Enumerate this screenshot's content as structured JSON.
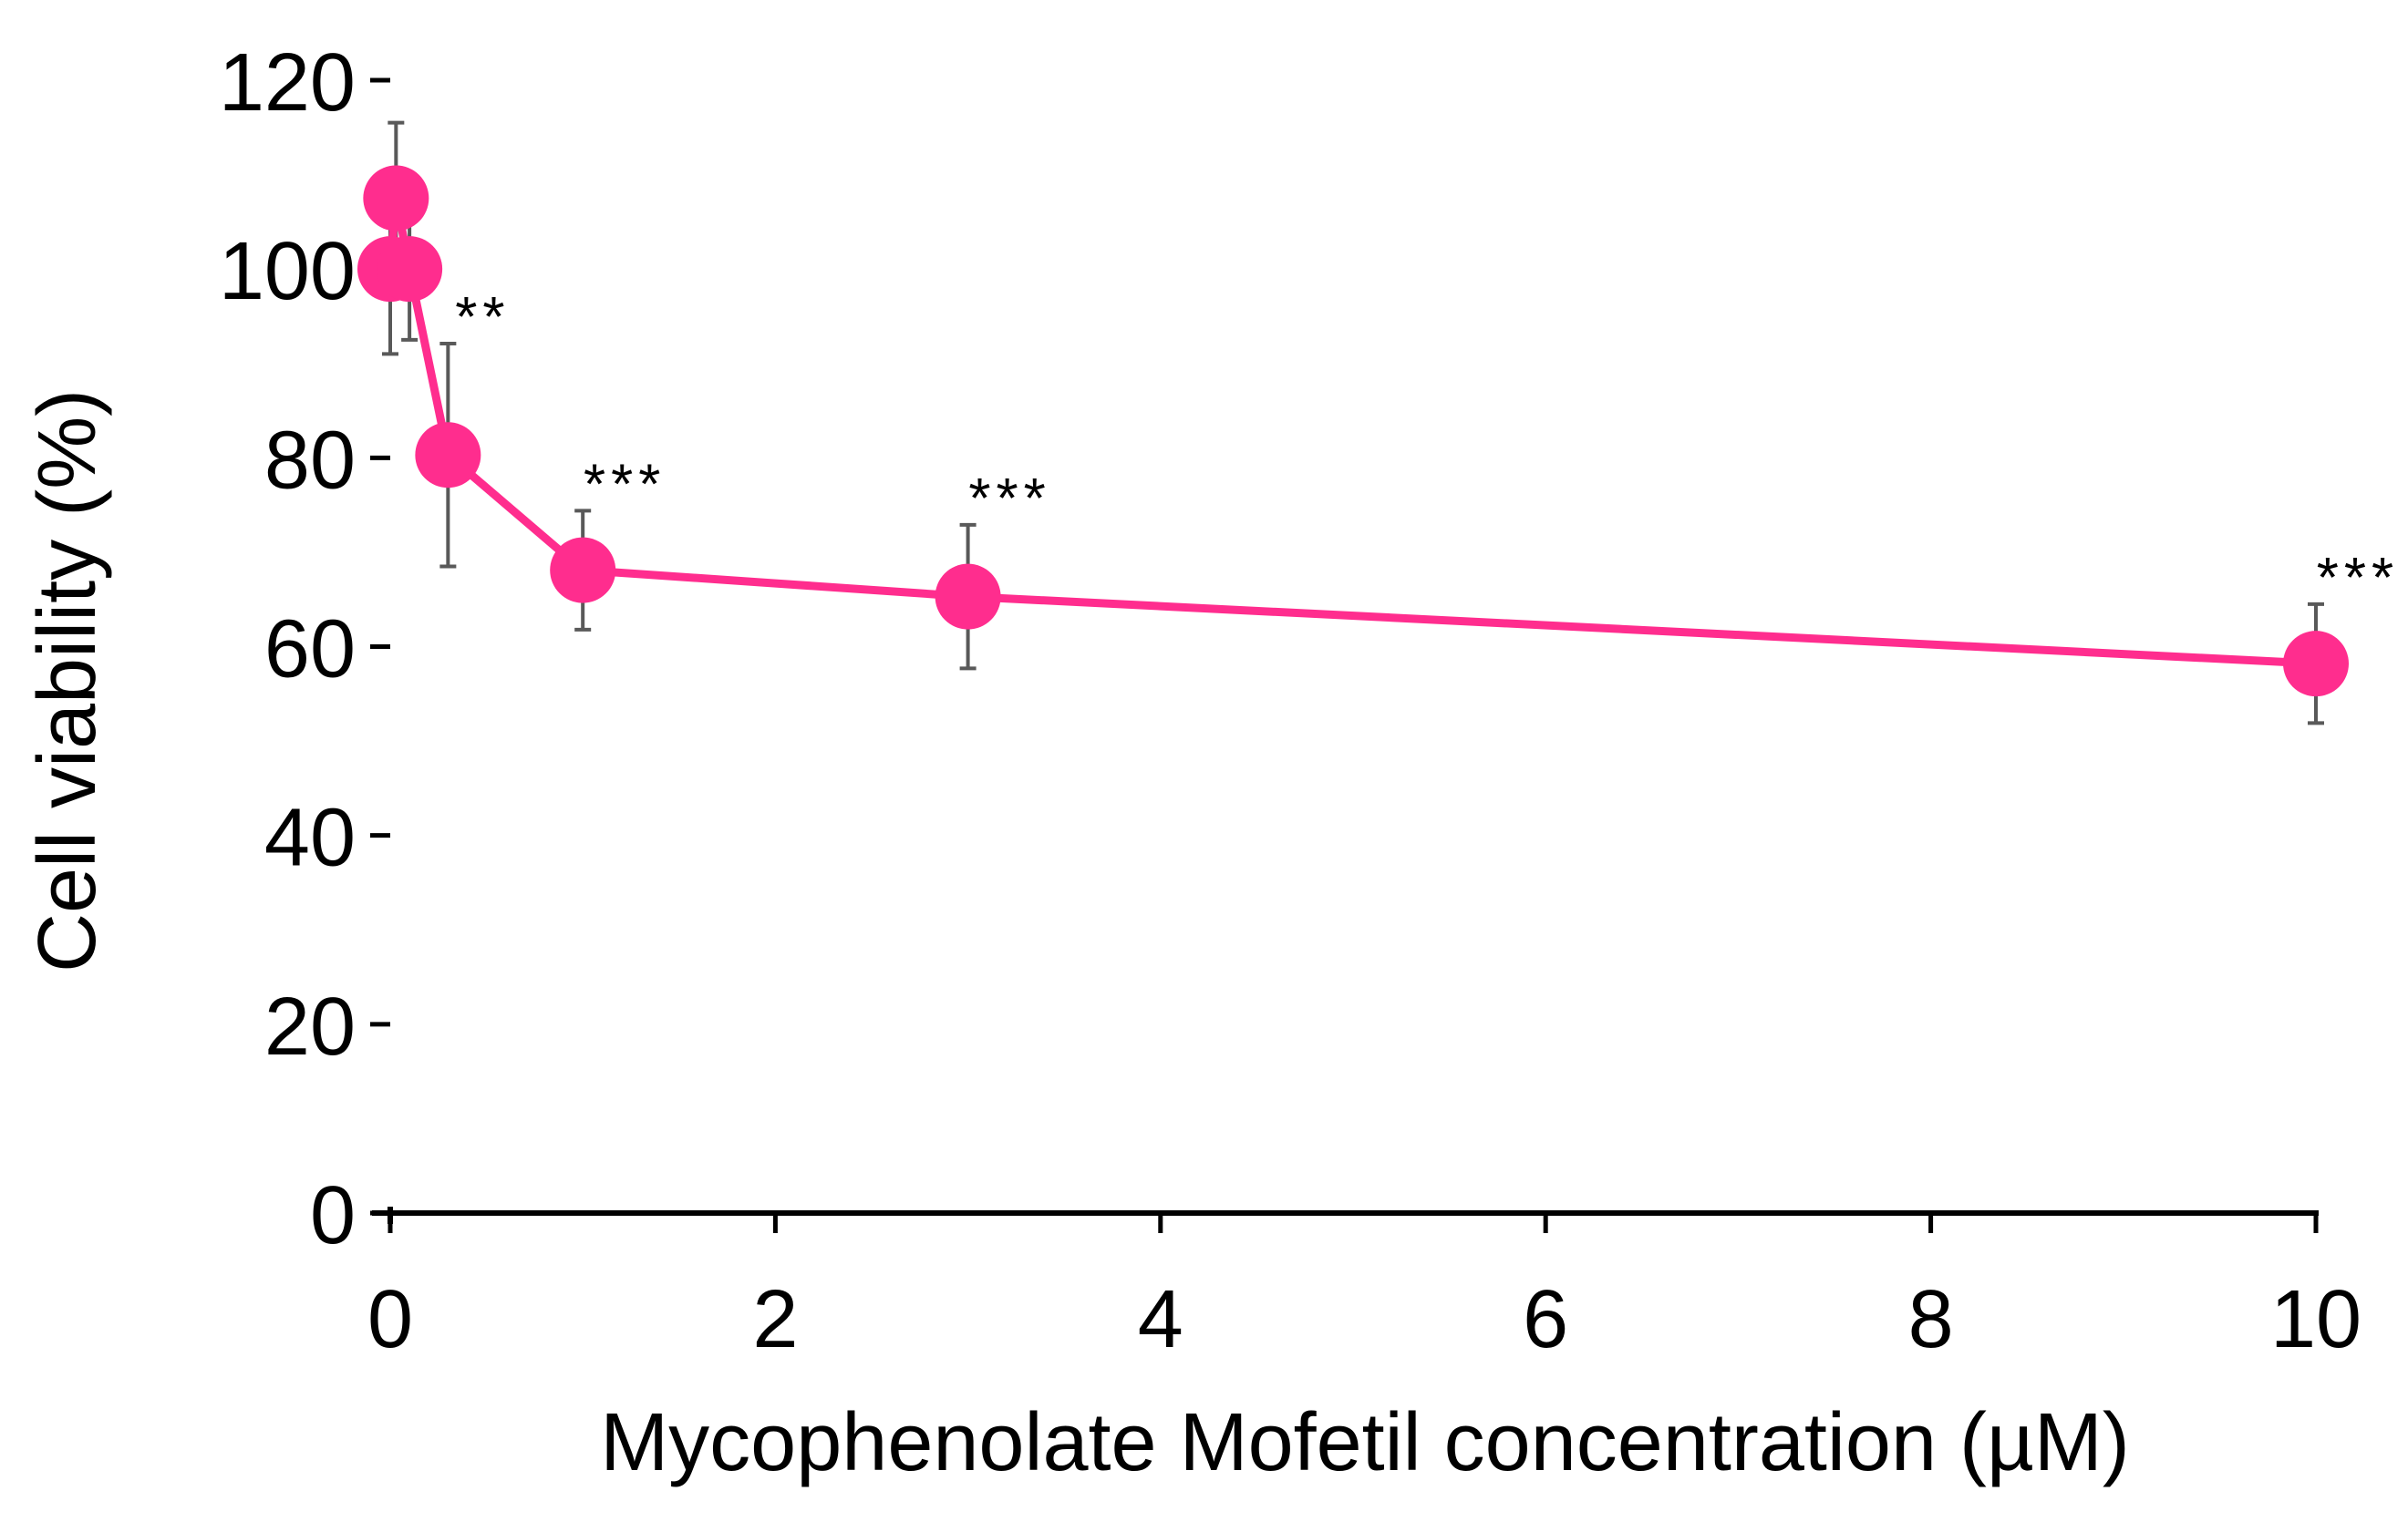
{
  "chart_data": {
    "type": "line",
    "title": "",
    "xlabel": "Mycophenolate Mofetil concentration (µM)",
    "ylabel": "Cell viability (%)",
    "xlim": [
      0,
      10
    ],
    "ylim": [
      0,
      120
    ],
    "x_ticks": [
      0,
      2,
      4,
      6,
      8,
      10
    ],
    "x_tick_labels": [
      "0",
      "2",
      "4",
      "6",
      "8",
      "10"
    ],
    "y_ticks": [
      0,
      20,
      40,
      60,
      80,
      100,
      120
    ],
    "y_tick_labels": [
      "0",
      "20",
      "40",
      "60",
      "80",
      "100",
      "120"
    ],
    "grid": false,
    "series": [
      {
        "name": "Cell viability",
        "color": "#ff2d8e",
        "x": [
          0,
          0.03,
          0.1,
          0.3,
          1,
          3,
          10
        ],
        "y": [
          100,
          107.5,
          100,
          80.3,
          68.1,
          65.3,
          58.2
        ],
        "error": [
          9,
          8,
          7.5,
          11.8,
          6.3,
          7.6,
          6.3
        ],
        "annotations": [
          "",
          "",
          "",
          "**",
          "***",
          "***",
          "***"
        ]
      }
    ],
    "colors": {
      "line": "#ff2d8e",
      "marker": "#ff2d8e",
      "errorbar": "#595959",
      "axis": "#000000",
      "text": "#000000"
    }
  }
}
